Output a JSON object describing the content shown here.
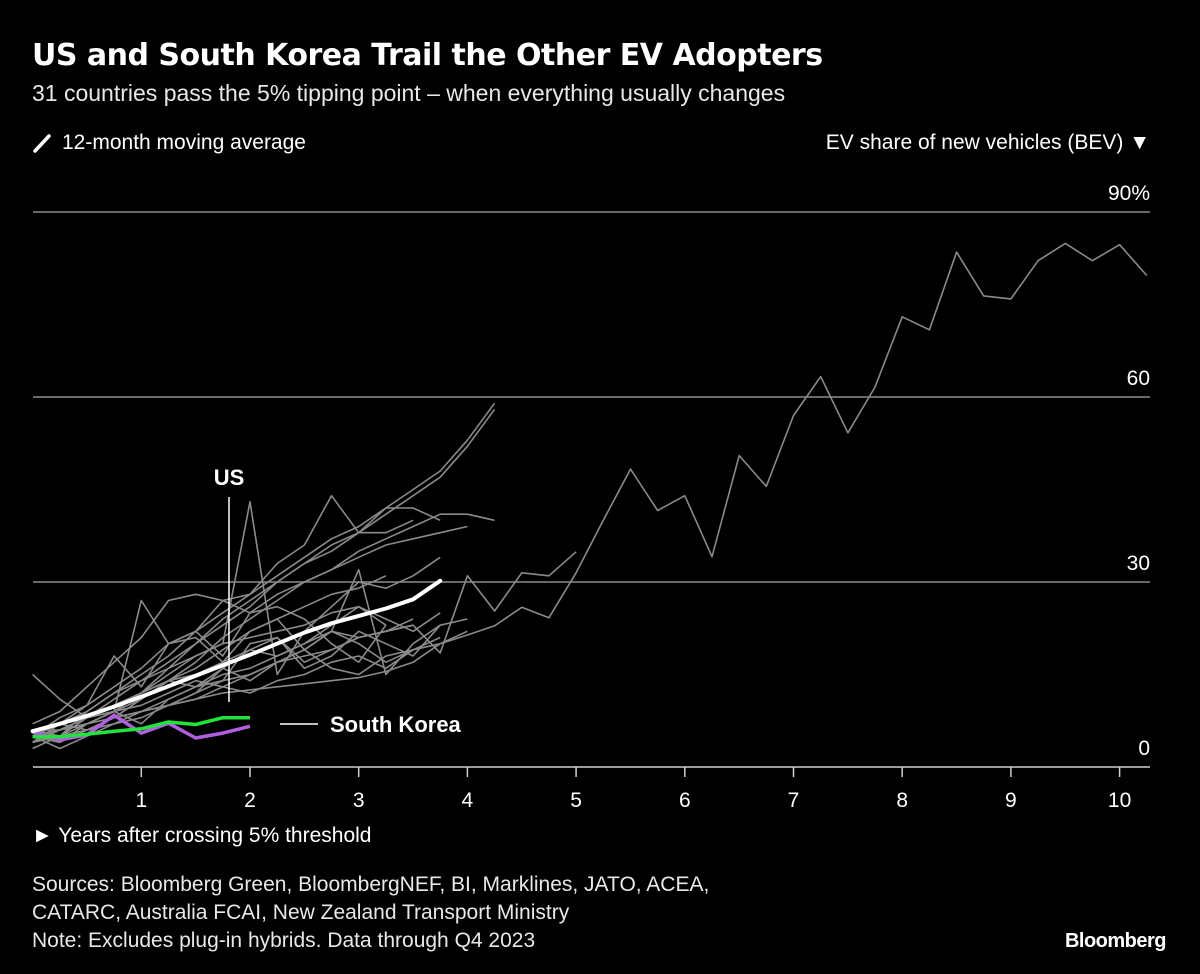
{
  "header": {
    "title": "US and South Korea Trail the Other EV Adopters",
    "subtitle": "31 countries pass the 5% tipping point – when everything usually changes"
  },
  "legend": {
    "icon": "slash-line-icon",
    "label": "12-month moving average"
  },
  "footer": {
    "sources_line1": "Sources: Bloomberg Green, BloombergNEF, BI, Marklines, JATO, ACEA,",
    "sources_line2": "CATARC, Australia FCAI, New Zealand Transport Ministry",
    "note": "Note: Excludes plug-in hybrids. Data through Q4 2023",
    "logo": "Bloomberg"
  },
  "chart_data": {
    "type": "line",
    "title": "US and South Korea Trail the Other EV Adopters",
    "xlabel": "► Years after crossing 5% threshold",
    "ylabel": "EV share of new vehicles (BEV) ▼",
    "xlim": [
      0,
      10.3
    ],
    "ylim": [
      0,
      90
    ],
    "x_ticks": [
      "1",
      "2",
      "3",
      "4",
      "5",
      "6",
      "7",
      "8",
      "9",
      "10"
    ],
    "y_ticks": [
      {
        "value": 0,
        "label": "0"
      },
      {
        "value": 30,
        "label": "30"
      },
      {
        "value": 60,
        "label": "60"
      },
      {
        "value": 90,
        "label": "90%"
      }
    ],
    "grid": true,
    "x_step": 0.25,
    "colors": {
      "other": "#8a8a8a",
      "average": "#ffffff",
      "us": "#22e33a",
      "south_korea": "#b05fe0"
    },
    "annotations": {
      "us": "US",
      "south_korea": "South Korea"
    },
    "average": {
      "name": "12-month moving average",
      "values": [
        5.8,
        7,
        8.3,
        9.8,
        11.4,
        13.1,
        14.8,
        16.5,
        18.2,
        20,
        21.8,
        23.3,
        24.5,
        25.7,
        27.2,
        30.2
      ]
    },
    "us": {
      "name": "US",
      "values": [
        4.9,
        4.9,
        5.3,
        5.8,
        6.2,
        7.3,
        6.9,
        8,
        8
      ]
    },
    "south_korea": {
      "name": "South Korea",
      "values": [
        5.7,
        4.4,
        5.2,
        8.4,
        5.5,
        7.1,
        4.7,
        5.5,
        6.6
      ]
    },
    "others": [
      [
        5,
        7,
        9,
        12,
        15,
        18,
        22,
        25,
        28,
        31,
        34,
        37,
        39,
        42,
        45,
        48,
        53,
        59
      ],
      [
        4,
        6,
        8,
        11,
        14,
        17,
        20,
        24,
        27,
        30,
        33,
        36,
        38,
        41,
        44,
        47,
        52,
        58
      ],
      [
        5,
        6,
        8,
        10,
        12,
        16,
        20,
        23,
        26,
        30,
        33,
        35,
        38,
        42,
        42,
        40
      ],
      [
        6,
        5,
        9,
        12,
        14,
        16,
        18,
        20,
        43,
        15,
        22,
        26,
        30,
        29,
        31,
        34
      ],
      [
        4,
        7,
        10,
        18,
        13,
        20,
        21,
        17,
        22,
        24,
        19,
        22,
        32,
        15,
        20,
        23
      ],
      [
        5,
        8,
        10,
        13,
        16,
        20,
        22,
        27,
        28,
        33,
        36,
        44,
        38,
        38,
        40
      ],
      [
        15,
        11,
        8,
        9,
        27,
        20,
        22,
        18,
        25,
        26,
        24,
        20,
        17,
        23
      ],
      [
        6,
        6,
        8,
        10,
        12,
        15,
        18,
        20,
        21,
        22,
        23,
        25,
        26,
        23
      ],
      [
        5,
        4,
        6,
        8,
        11,
        14,
        13,
        16,
        19,
        21,
        16,
        18,
        22,
        20,
        18,
        23,
        24
      ],
      [
        5,
        6,
        7,
        9,
        10,
        12,
        14,
        13,
        15,
        17,
        19,
        16,
        15,
        18,
        19,
        20,
        22
      ],
      [
        4,
        5,
        6,
        8,
        9,
        11,
        13,
        15,
        16,
        18,
        20,
        23,
        26,
        24,
        22,
        25
      ],
      [
        5,
        3,
        5,
        7,
        8,
        10,
        12,
        16,
        14,
        17,
        19,
        22,
        20,
        17,
        19,
        21
      ],
      [
        6,
        7,
        8,
        9,
        12,
        14,
        16,
        19,
        22,
        24,
        26,
        28,
        29,
        31
      ],
      [
        4,
        5,
        6,
        7,
        9,
        10,
        12,
        14,
        15,
        17,
        18,
        19,
        21,
        22,
        23
      ],
      [
        7,
        9,
        13,
        17,
        21,
        27,
        28,
        27,
        25,
        28,
        30,
        32,
        34,
        36,
        37,
        38,
        39
      ],
      [
        5,
        6,
        7,
        8,
        9,
        10,
        11,
        13,
        12,
        14,
        15,
        17,
        18,
        16,
        19
      ],
      [
        3,
        5,
        8,
        9,
        7,
        11,
        13,
        14,
        20,
        21,
        17,
        19,
        21,
        22,
        24
      ],
      [
        5,
        4,
        7,
        9,
        11,
        14,
        17,
        21,
        24,
        27,
        30,
        32,
        35,
        37,
        39,
        41,
        41,
        40
      ],
      [
        6,
        5,
        7,
        9,
        12,
        14,
        15,
        17,
        19,
        18,
        20,
        22,
        21,
        22,
        23,
        18.5,
        31,
        25.3,
        31.5,
        31,
        34.9
      ],
      [
        5,
        7,
        6,
        8,
        9,
        10,
        11,
        12,
        12.5,
        13,
        13.5,
        14,
        14.5,
        15.5,
        17,
        20,
        21.4,
        22.9,
        25.9,
        24.2,
        31.5,
        40,
        48.3,
        41.6,
        44,
        34.1,
        50.5,
        45.5,
        57,
        63.3,
        54.2,
        61.6,
        73,
        70.9,
        83.5,
        76.4,
        75.9,
        82.1,
        84.9,
        82.1,
        84.7,
        79.7
      ]
    ]
  }
}
